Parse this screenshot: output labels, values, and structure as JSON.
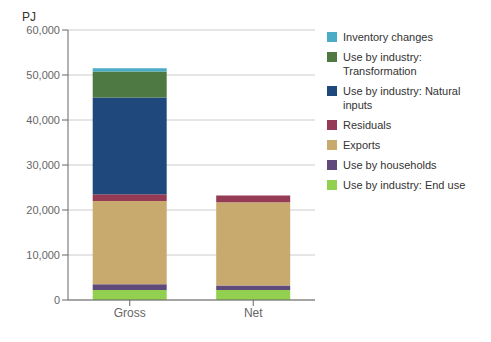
{
  "chart_data": {
    "type": "bar",
    "stacked": true,
    "ylabel": "PJ",
    "categories": [
      "Gross",
      "Net"
    ],
    "series": [
      {
        "name": "Use by industry: End use",
        "color": "#92d050",
        "values": [
          2200,
          2200
        ]
      },
      {
        "name": "Use by households",
        "color": "#604a7b",
        "values": [
          1300,
          1000
        ]
      },
      {
        "name": "Exports",
        "color": "#c8a96e",
        "values": [
          18500,
          18500
        ]
      },
      {
        "name": "Residuals",
        "color": "#953b55",
        "values": [
          1500,
          1500
        ]
      },
      {
        "name": "Use by industry: Natural\ninputs",
        "color": "#1f497d",
        "values": [
          21500,
          0
        ]
      },
      {
        "name": "Use by industry:\nTransformation",
        "color": "#4f7942",
        "values": [
          5800,
          0
        ]
      },
      {
        "name": "Inventory changes",
        "color": "#4bacc6",
        "values": [
          700,
          0
        ]
      }
    ],
    "ylim": [
      0,
      60000
    ],
    "yticks": [
      0,
      {
        "value": 10000,
        "label": "10,000"
      },
      {
        "value": 20000,
        "label": "20,000"
      },
      {
        "value": 30000,
        "label": "30,000"
      },
      {
        "value": 40000,
        "label": "40,000"
      },
      {
        "value": 50000,
        "label": "50,000"
      },
      {
        "value": 60000,
        "label": "60,000"
      }
    ],
    "grid": true,
    "legend": "right"
  }
}
